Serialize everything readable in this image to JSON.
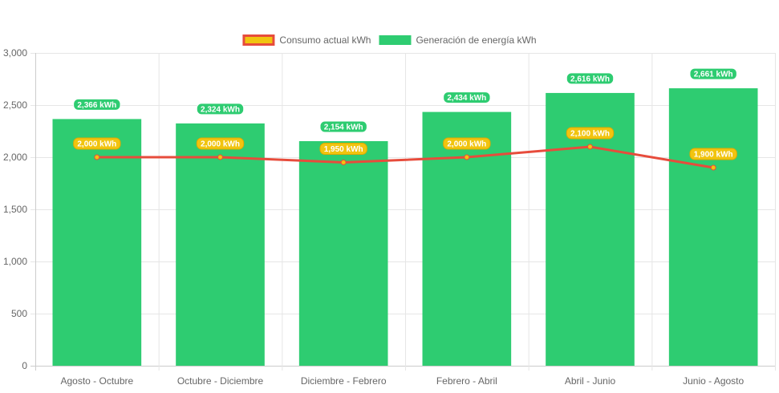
{
  "chart_data": {
    "type": "bar",
    "categories": [
      "Agosto - Octubre",
      "Octubre - Diciembre",
      "Diciembre - Febrero",
      "Febrero - Abril",
      "Abril - Junio",
      "Junio - Agosto"
    ],
    "series": [
      {
        "name": "Consumo actual kWh",
        "type": "line",
        "color": "#e74c3c",
        "fill": "#f1c40f",
        "values": [
          2000,
          2000,
          1950,
          2000,
          2100,
          1900
        ],
        "labels": [
          "2,000 kWh",
          "2,000 kWh",
          "1,950 kWh",
          "2,000 kWh",
          "2,100 kWh",
          "1,900 kWh"
        ]
      },
      {
        "name": "Generación de energía kWh",
        "type": "bar",
        "color": "#2ecc71",
        "values": [
          2366,
          2324,
          2154,
          2434,
          2616,
          2661
        ],
        "labels": [
          "2,366 kWh",
          "2,324 kWh",
          "2,154 kWh",
          "2,434 kWh",
          "2,616 kWh",
          "2,661 kWh"
        ]
      }
    ],
    "ylim": [
      0,
      3000
    ],
    "yticks": [
      {
        "value": 0,
        "label": "0"
      },
      {
        "value": 500,
        "label": "500"
      },
      {
        "value": 1000,
        "label": "1,000"
      },
      {
        "value": 1500,
        "label": "1,500"
      },
      {
        "value": 2000,
        "label": "2,000"
      },
      {
        "value": 2500,
        "label": "2,500"
      },
      {
        "value": 3000,
        "label": "3,000"
      }
    ],
    "grid": true,
    "legend": "top-center",
    "title": "",
    "xlabel": "",
    "ylabel": ""
  }
}
